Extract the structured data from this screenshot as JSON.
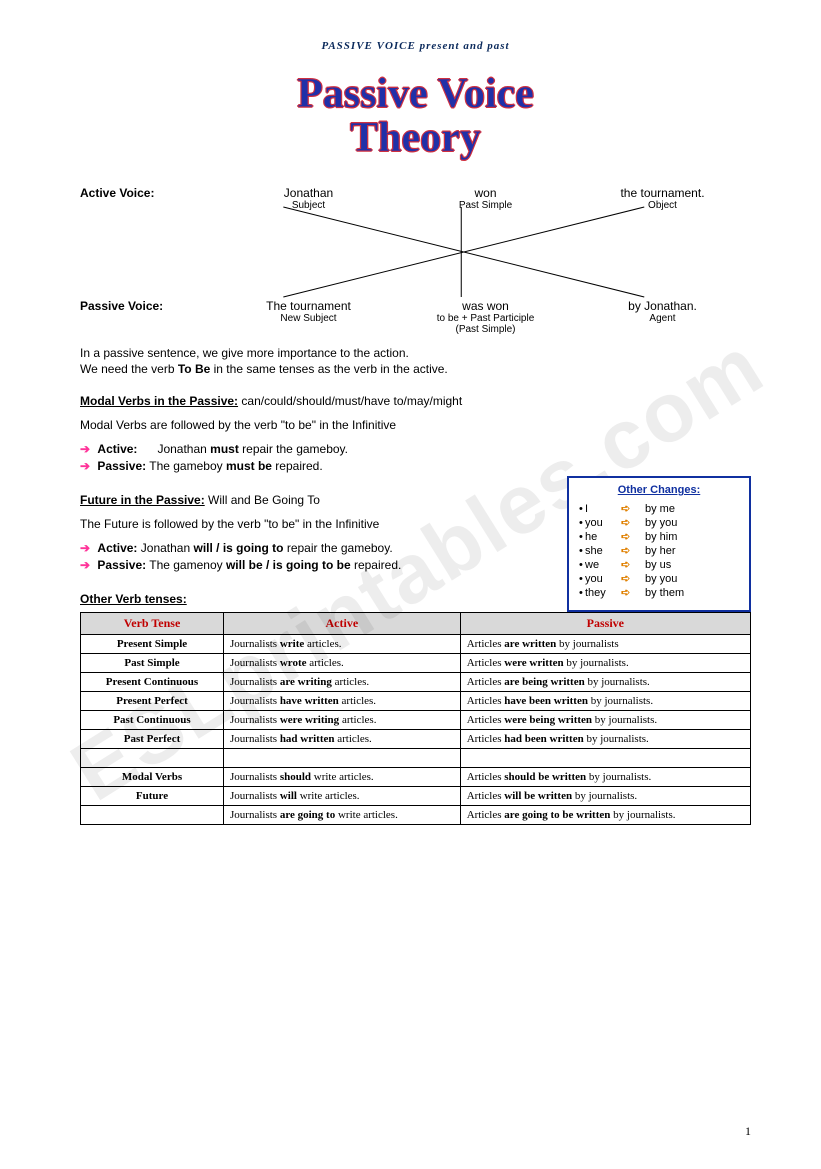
{
  "header": "PASSIVE VOICE present and past",
  "title": {
    "line1": "Passive Voice",
    "line2": "Theory"
  },
  "active": {
    "label": "Active Voice:",
    "subject": "Jonathan",
    "verb": "won",
    "object": "the tournament.",
    "sub_subject": "Subject",
    "sub_verb": "Past Simple",
    "sub_object": "Object"
  },
  "passive": {
    "label": "Passive Voice:",
    "subject": "The tournament",
    "verb": "was won",
    "agent": "by Jonathan.",
    "sub_subject": "New Subject",
    "sub_verb": "to be + Past Participle",
    "sub_verb2": "(Past Simple)",
    "sub_agent": "Agent"
  },
  "intro": {
    "l1": "In a passive sentence, we give more importance to the action.",
    "l2_pre": "We need the verb ",
    "l2_bold": "To Be",
    "l2_post": " in the same tenses as the verb in the active."
  },
  "modal": {
    "title": "Modal Verbs in the Passive:",
    "title_post": " can/could/should/must/have to/may/might",
    "line": "Modal Verbs are followed by the verb \"to be\" in the Infinitive",
    "active_label": "Active:",
    "active_sent_pre": "Jonathan ",
    "active_bold": "must",
    "active_sent_post": " repair the gameboy.",
    "passive_label": "Passive:",
    "passive_sent_pre": "The gameboy ",
    "passive_bold": "must be",
    "passive_sent_post": " repaired."
  },
  "future": {
    "title": "Future in the Passive:",
    "title_post": " Will and Be Going To",
    "line": "The Future is followed by the verb \"to be\" in the Infinitive",
    "active_label": "Active:",
    "active_pre": "Jonathan ",
    "active_bold": "will / is going to",
    "active_post": " repair the gameboy.",
    "passive_label": "Passive:",
    "passive_pre": "The gamenoy ",
    "passive_bold": "will be / is going to be",
    "passive_post": " repaired."
  },
  "other_section": "Other Verb tenses:",
  "table": {
    "h1": "Verb Tense",
    "h2": "Active",
    "h3": "Passive",
    "rows": [
      {
        "tense": "Present Simple",
        "a_pre": "Journalists ",
        "a_bold": "write",
        "a_post": " articles.",
        "p_pre": "Articles ",
        "p_bold": "are written",
        "p_post": " by journalists"
      },
      {
        "tense": "Past Simple",
        "a_pre": "Journalists ",
        "a_bold": "wrote",
        "a_post": " articles.",
        "p_pre": "Articles ",
        "p_bold": "were written",
        "p_post": " by journalists."
      },
      {
        "tense": "Present Continuous",
        "a_pre": "Journalists ",
        "a_bold": "are writing",
        "a_post": " articles.",
        "p_pre": "Articles ",
        "p_bold": "are being written",
        "p_post": " by journalists."
      },
      {
        "tense": "Present Perfect",
        "a_pre": "Journalists ",
        "a_bold": "have written",
        "a_post": " articles.",
        "p_pre": "Articles ",
        "p_bold": "have been written",
        "p_post": " by journalists."
      },
      {
        "tense": "Past Continuous",
        "a_pre": "Journalists ",
        "a_bold": "were writing",
        "a_post": " articles.",
        "p_pre": "Articles ",
        "p_bold": "were being written",
        "p_post": " by journalists."
      },
      {
        "tense": "Past Perfect",
        "a_pre": "Journalists ",
        "a_bold": "had written",
        "a_post": " articles.",
        "p_pre": "Articles ",
        "p_bold": "had been written",
        "p_post": " by journalists."
      }
    ],
    "rows2": [
      {
        "tense": "Modal Verbs",
        "a_pre": "Journalists ",
        "a_bold": "should",
        "a_post": " write articles.",
        "p_pre": "Articles ",
        "p_bold": "should be written",
        "p_post": " by journalists."
      },
      {
        "tense": "Future",
        "a_pre": "Journalists ",
        "a_bold": "will",
        "a_post": " write articles.",
        "p_pre": "Articles ",
        "p_bold": "will be written",
        "p_post": " by journalists."
      },
      {
        "tense": "",
        "a_pre": "Journalists ",
        "a_bold": "are going to",
        "a_post": " write articles.",
        "p_pre": "Articles ",
        "p_bold": "are going to be written",
        "p_post": " by journalists."
      }
    ]
  },
  "other_changes": {
    "title": "Other Changes:",
    "rows": [
      {
        "from": "I",
        "to": "by me"
      },
      {
        "from": "you",
        "to": "by you"
      },
      {
        "from": "he",
        "to": "by him"
      },
      {
        "from": "she",
        "to": "by her"
      },
      {
        "from": "we",
        "to": "by us"
      },
      {
        "from": "you",
        "to": "by you"
      },
      {
        "from": "they",
        "to": "by them"
      }
    ]
  },
  "page_number": "1",
  "watermark": "ESLprintables.com",
  "colors": {
    "title_fill": "#2030a8",
    "title_stroke": "#d03040",
    "arrow_pink": "#ff3399",
    "box_border": "#1030a0",
    "table_header_bg": "#d9d9d9",
    "table_header_text": "#c00000",
    "oc_arrow": "#e08000"
  }
}
